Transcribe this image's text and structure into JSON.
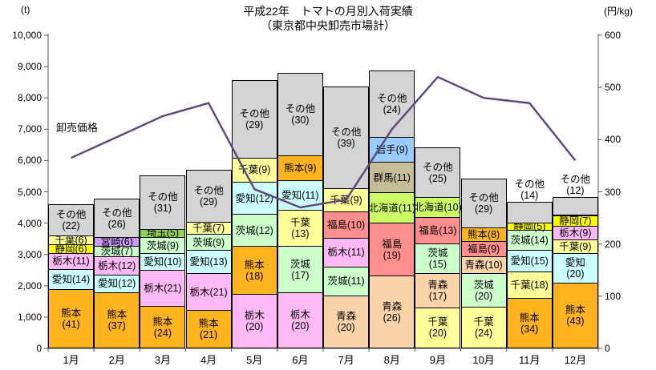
{
  "title": {
    "line1": "平成22年　トマトの月別入荷実績",
    "line2": "（東京都中央卸売市場計）"
  },
  "axes": {
    "left_unit": "(t)",
    "right_unit": "(円/kg)",
    "left_ticks": [
      "10,000",
      "9,000",
      "8,000",
      "7,000",
      "6,000",
      "5,000",
      "4,000",
      "3,000",
      "2,000",
      "1,000",
      "0"
    ],
    "right_ticks": [
      "600",
      "500",
      "400",
      "300",
      "200",
      "100",
      "0"
    ],
    "left_max": 10000,
    "right_max": 600
  },
  "price_line_label": "卸売価格",
  "chart_data": {
    "type": "bar",
    "subtype": "stacked-bar-with-line",
    "title": "平成22年　トマトの月別入荷実績（東京都中央卸売市場計）",
    "bar_unit": "t",
    "line_unit": "円/kg",
    "left_axis_range": [
      0,
      10000
    ],
    "right_axis_range": [
      0,
      600
    ],
    "grid": false,
    "categories": [
      "1月",
      "2月",
      "3月",
      "4月",
      "5月",
      "6月",
      "7月",
      "8月",
      "9月",
      "10月",
      "11月",
      "12月"
    ],
    "totals_t": [
      4580,
      4760,
      5500,
      5670,
      8540,
      8780,
      8340,
      8850,
      6400,
      5390,
      4650,
      4810
    ],
    "stacks": [
      [
        {
          "name": "熊本",
          "pct": 41,
          "two_line": true
        },
        {
          "name": "愛知",
          "pct": 14
        },
        {
          "name": "栃木",
          "pct": 11
        },
        {
          "name": "静岡",
          "pct": 6
        },
        {
          "name": "千葉",
          "pct": 6
        },
        {
          "name": "その他",
          "pct": 22,
          "two_line": true
        }
      ],
      [
        {
          "name": "熊本",
          "pct": 37,
          "two_line": true
        },
        {
          "name": "愛知",
          "pct": 12
        },
        {
          "name": "栃木",
          "pct": 12
        },
        {
          "name": "茨城",
          "pct": 7
        },
        {
          "name": "宮崎",
          "pct": 6
        },
        {
          "name": "その他",
          "pct": 26,
          "two_line": true
        }
      ],
      [
        {
          "name": "熊本",
          "pct": 24,
          "two_line": true
        },
        {
          "name": "栃木",
          "pct": 21
        },
        {
          "name": "愛知",
          "pct": 10
        },
        {
          "name": "茨城",
          "pct": 9
        },
        {
          "name": "埼玉",
          "pct": 5
        },
        {
          "name": "その他",
          "pct": 31,
          "two_line": true
        }
      ],
      [
        {
          "name": "熊本",
          "pct": 21,
          "two_line": true
        },
        {
          "name": "栃木",
          "pct": 21
        },
        {
          "name": "愛知",
          "pct": 13
        },
        {
          "name": "茨城",
          "pct": 9
        },
        {
          "name": "千葉",
          "pct": 7
        },
        {
          "name": "その他",
          "pct": 29,
          "two_line": true
        }
      ],
      [
        {
          "name": "栃木",
          "pct": 20,
          "two_line": true
        },
        {
          "name": "熊本",
          "pct": 18,
          "two_line": true
        },
        {
          "name": "茨城",
          "pct": 12
        },
        {
          "name": "愛知",
          "pct": 12
        },
        {
          "name": "千葉",
          "pct": 9
        },
        {
          "name": "その他",
          "pct": 29,
          "two_line": true
        }
      ],
      [
        {
          "name": "栃木",
          "pct": 20,
          "two_line": true
        },
        {
          "name": "茨城",
          "pct": 17,
          "two_line": true
        },
        {
          "name": "千葉",
          "pct": 13,
          "two_line": true
        },
        {
          "name": "愛知",
          "pct": 11
        },
        {
          "name": "熊本",
          "pct": 9
        },
        {
          "name": "その他",
          "pct": 30,
          "two_line": true
        }
      ],
      [
        {
          "name": "青森",
          "pct": 20,
          "two_line": true
        },
        {
          "name": "茨城",
          "pct": 11
        },
        {
          "name": "栃木",
          "pct": 11
        },
        {
          "name": "福島",
          "pct": 10
        },
        {
          "name": "千葉",
          "pct": 9
        },
        {
          "name": "その他",
          "pct": 39,
          "two_line": true
        }
      ],
      [
        {
          "name": "青森",
          "pct": 26,
          "two_line": true
        },
        {
          "name": "福島",
          "pct": 19,
          "two_line": true
        },
        {
          "name": "北海道",
          "pct": 11
        },
        {
          "name": "群馬",
          "pct": 11
        },
        {
          "name": "岩手",
          "pct": 9
        },
        {
          "name": "その他",
          "pct": 24,
          "two_line": true
        }
      ],
      [
        {
          "name": "千葉",
          "pct": 20,
          "two_line": true
        },
        {
          "name": "青森",
          "pct": 17,
          "two_line": true
        },
        {
          "name": "茨城",
          "pct": 15,
          "two_line": true
        },
        {
          "name": "福島",
          "pct": 13
        },
        {
          "name": "北海道",
          "pct": 10
        },
        {
          "name": "その他",
          "pct": 25,
          "two_line": true
        }
      ],
      [
        {
          "name": "千葉",
          "pct": 24,
          "two_line": true
        },
        {
          "name": "茨城",
          "pct": 20,
          "two_line": true
        },
        {
          "name": "青森",
          "pct": 10
        },
        {
          "name": "福島",
          "pct": 9
        },
        {
          "name": "熊本",
          "pct": 8
        },
        {
          "name": "その他",
          "pct": 29,
          "two_line": true
        }
      ],
      [
        {
          "name": "熊本",
          "pct": 34,
          "two_line": true
        },
        {
          "name": "千葉",
          "pct": 18
        },
        {
          "name": "愛知",
          "pct": 15
        },
        {
          "name": "茨城",
          "pct": 14
        },
        {
          "name": "静岡",
          "pct": 5
        },
        {
          "name": "その他",
          "pct": 14,
          "two_line": true
        }
      ],
      [
        {
          "name": "熊本",
          "pct": 43,
          "two_line": true
        },
        {
          "name": "愛知",
          "pct": 20,
          "two_line": true
        },
        {
          "name": "千葉",
          "pct": 9
        },
        {
          "name": "栃木",
          "pct": 9
        },
        {
          "name": "静岡",
          "pct": 7
        },
        {
          "name": "その他",
          "pct": 12,
          "two_line": true
        }
      ]
    ],
    "line_series": {
      "name": "卸売価格",
      "values": [
        365,
        405,
        445,
        470,
        305,
        270,
        285,
        420,
        520,
        480,
        470,
        360
      ]
    },
    "colors": {
      "熊本": "#FFB31E",
      "愛知": "#CCFFFF",
      "栃木": "#FFB9F5",
      "静岡": "#FFFF00",
      "千葉": "#FFFF99",
      "宮崎": "#CC99FF",
      "茨城": "#CCFFCC",
      "埼玉": "#92D050",
      "北海道": "#CCFF66",
      "群馬": "#C4BD97",
      "岩手": "#99CCFF",
      "福島": "#FF8F8F",
      "青森": "#FAD3A9",
      "その他": "#D4D4D4",
      "line": "#604A7B",
      "axis": "#595959"
    }
  }
}
